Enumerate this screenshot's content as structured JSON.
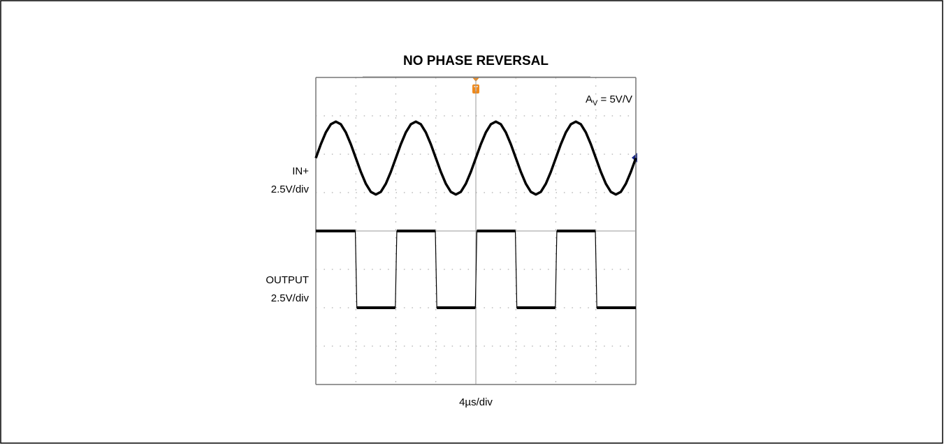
{
  "chart_data": {
    "type": "line",
    "title": "NO PHASE REVERSAL",
    "annotation": [
      "A",
      "V",
      " = 5V/V"
    ],
    "xlabel": "4µs/div",
    "xlim": [
      0,
      32
    ],
    "xticks": [
      0,
      4,
      8,
      12,
      16,
      20,
      24,
      28,
      32
    ],
    "ylim": [
      -4,
      4
    ],
    "yticks": [
      -4,
      -3,
      -2,
      -1,
      0,
      1,
      2,
      3,
      4
    ],
    "grid": true,
    "series": [
      {
        "name": "IN+",
        "scale": "2.5V/div",
        "color": "#000000",
        "x": [
          0,
          0.5,
          1,
          1.5,
          2,
          2.5,
          3,
          3.5,
          4,
          4.5,
          5,
          5.5,
          6,
          6.5,
          7,
          7.5,
          8,
          8.5,
          9,
          9.5,
          10,
          10.5,
          11,
          11.5,
          12,
          12.5,
          13,
          13.5,
          14,
          14.5,
          15,
          15.5,
          16,
          16.5,
          17,
          17.5,
          18,
          18.5,
          19,
          19.5,
          20,
          20.5,
          21,
          21.5,
          22,
          22.5,
          23,
          23.5,
          24,
          24.5,
          25,
          25.5,
          26,
          26.5,
          27,
          27.5,
          28,
          28.5,
          29,
          29.5,
          30,
          30.5,
          31,
          31.5,
          32
        ],
        "values": [
          1.9,
          2.26,
          2.57,
          2.78,
          2.85,
          2.78,
          2.57,
          2.26,
          1.9,
          1.54,
          1.23,
          1.02,
          0.95,
          1.02,
          1.23,
          1.54,
          1.9,
          2.26,
          2.57,
          2.78,
          2.85,
          2.78,
          2.57,
          2.26,
          1.9,
          1.54,
          1.23,
          1.02,
          0.95,
          1.02,
          1.23,
          1.54,
          1.9,
          2.26,
          2.57,
          2.78,
          2.85,
          2.78,
          2.57,
          2.26,
          1.9,
          1.54,
          1.23,
          1.02,
          0.95,
          1.02,
          1.23,
          1.54,
          1.9,
          2.26,
          2.57,
          2.78,
          2.85,
          2.78,
          2.57,
          2.26,
          1.9,
          1.54,
          1.23,
          1.02,
          0.95,
          1.02,
          1.23,
          1.54,
          1.9
        ]
      },
      {
        "name": "OUTPUT",
        "scale": "2.5V/div",
        "color": "#000000",
        "x": [
          0,
          3.95,
          4.1,
          7.95,
          8.1,
          11.95,
          12.1,
          15.95,
          16.1,
          19.95,
          20.1,
          23.95,
          24.1,
          27.95,
          28.1,
          32
        ],
        "values": [
          0,
          0,
          -2,
          -2,
          0,
          0,
          -2,
          -2,
          0,
          0,
          -2,
          -2,
          0,
          0,
          -2,
          -2
        ]
      }
    ]
  }
}
